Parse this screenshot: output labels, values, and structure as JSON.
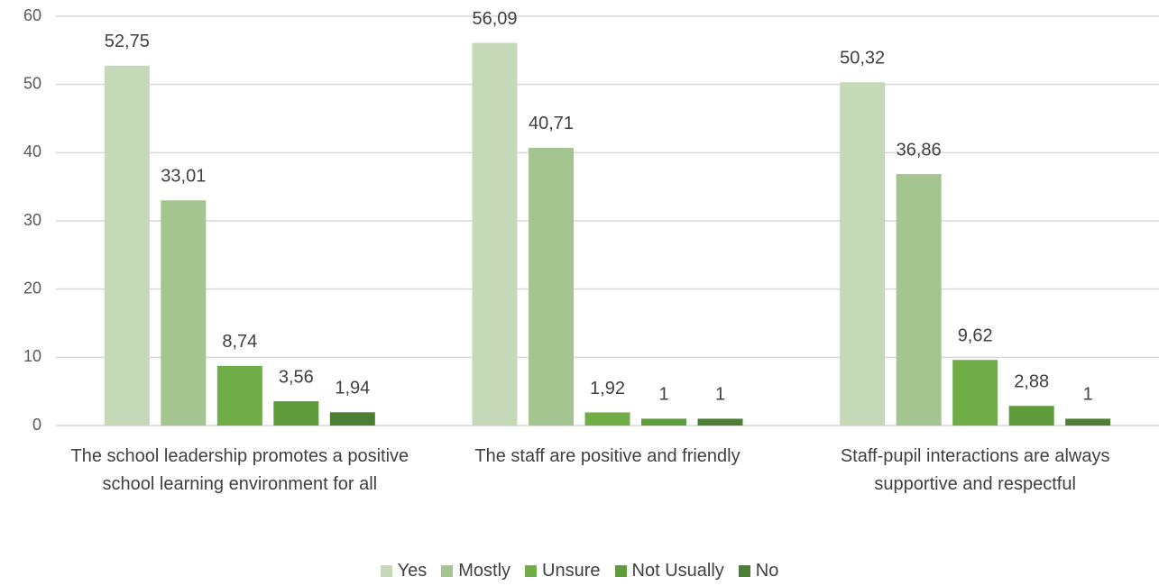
{
  "chart_data": {
    "type": "bar",
    "categories": [
      "The school leadership promotes a positive school learning environment for all",
      "The staff are positive and friendly",
      "Staff-pupil interactions are always supportive and respectful"
    ],
    "series": [
      {
        "name": "Yes",
        "color": "#c5d9b9",
        "values": [
          52.75,
          56.09,
          50.32
        ],
        "value_labels": [
          "52,75",
          "56,09",
          "50,32"
        ]
      },
      {
        "name": "Mostly",
        "color": "#a4c58f",
        "values": [
          33.01,
          40.71,
          36.86
        ],
        "value_labels": [
          "33,01",
          "40,71",
          "36,86"
        ]
      },
      {
        "name": "Unsure",
        "color": "#70ad47",
        "values": [
          8.74,
          1.92,
          9.62
        ],
        "value_labels": [
          "8,74",
          "1,92",
          "9,62"
        ]
      },
      {
        "name": "Not Usually",
        "color": "#5e9c3c",
        "values": [
          3.56,
          1,
          2.88
        ],
        "value_labels": [
          "3,56",
          "1",
          "2,88"
        ]
      },
      {
        "name": "No",
        "color": "#4c7f32",
        "values": [
          1.94,
          1,
          1
        ],
        "value_labels": [
          "1,94",
          "1",
          "1"
        ]
      }
    ],
    "ylim": [
      0,
      60
    ],
    "yticks": [
      0,
      10,
      20,
      30,
      40,
      50,
      60
    ],
    "grid": true,
    "legend": "bottom"
  }
}
